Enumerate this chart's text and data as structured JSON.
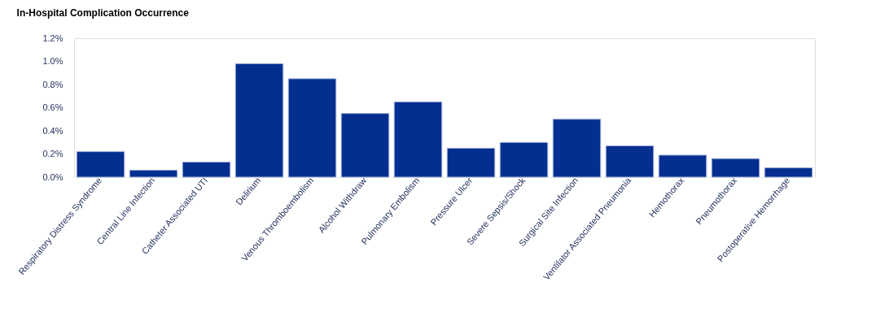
{
  "chart_data": {
    "type": "bar",
    "title": "In-Hospital Complication Occurrence",
    "categories": [
      "Respiratory Distress Syndrome",
      "Central Line Infection",
      "Catheter Associated UTI",
      "Delirium",
      "Venous Thromboembolism",
      "Alcohol Withdraw",
      "Pulmonary Embolism",
      "Pressure Ulcer",
      "Severe Sepsis/Shock",
      "Surgical Site Infection",
      "Ventilator Associated Pneumonia",
      "Hemothorax",
      "Pneumothorax",
      "Postoperative Hemorrhage"
    ],
    "values": [
      0.22,
      0.06,
      0.13,
      0.98,
      0.85,
      0.55,
      0.65,
      0.25,
      0.3,
      0.5,
      0.27,
      0.19,
      0.16,
      0.08
    ],
    "color": "#042e8f",
    "ylim": [
      0,
      1.2
    ],
    "yticks": [
      {
        "value": 0,
        "label": "0.0%"
      },
      {
        "value": 0.2,
        "label": "0.2%"
      },
      {
        "value": 0.4,
        "label": "0.4%"
      },
      {
        "value": 0.6,
        "label": "0.6%"
      },
      {
        "value": 0.8,
        "label": "0.8%"
      },
      {
        "value": 1.0,
        "label": "1.0%"
      },
      {
        "value": 1.2,
        "label": "1.2%"
      }
    ],
    "grid": false
  }
}
